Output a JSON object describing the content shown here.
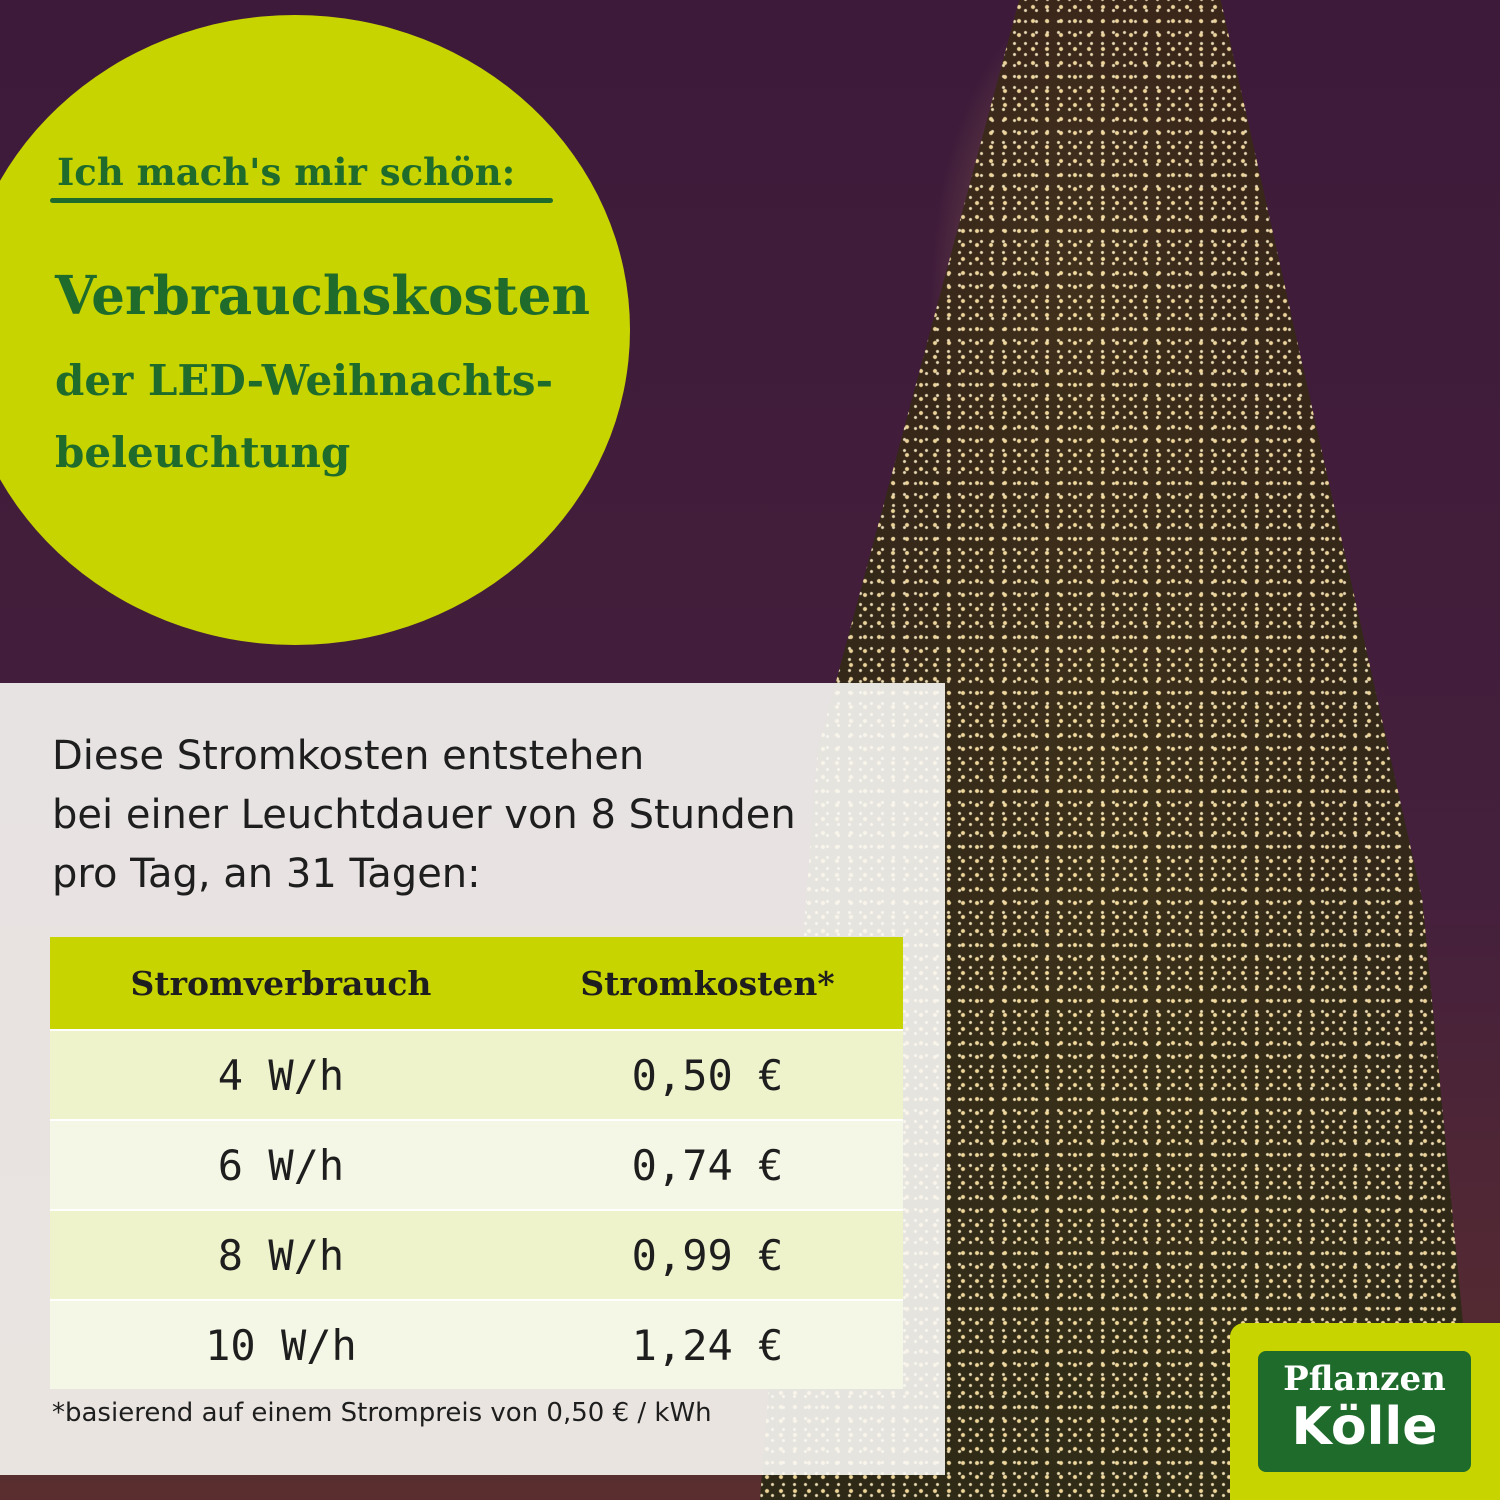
{
  "headline": {
    "kicker": "Ich mach's mir schön:",
    "title_line1": "Verbrauchskosten",
    "title_line2": "der LED-Weihnachts-",
    "title_line3": "beleuchtung"
  },
  "intro": {
    "line1": "Diese Stromkosten entstehen",
    "line2": "bei einer Leuchtdauer von 8 Stunden",
    "line3": "pro Tag, an 31 Tagen:"
  },
  "table": {
    "headers": [
      "Stromverbrauch",
      "Stromkosten*"
    ],
    "rows": [
      [
        "4 W/h",
        "0,50 €"
      ],
      [
        "6 W/h",
        "0,74 €"
      ],
      [
        "8 W/h",
        "0,99 €"
      ],
      [
        "10 W/h",
        "1,24 €"
      ]
    ]
  },
  "footnote": "*basierend auf einem Strompreis von 0,50 € / kWh",
  "logo": {
    "line1": "Pflanzen",
    "line2": "Kölle"
  },
  "colors": {
    "accent": "#c8d400",
    "brand_green": "#1f6b2c",
    "background": "#3b1936"
  }
}
